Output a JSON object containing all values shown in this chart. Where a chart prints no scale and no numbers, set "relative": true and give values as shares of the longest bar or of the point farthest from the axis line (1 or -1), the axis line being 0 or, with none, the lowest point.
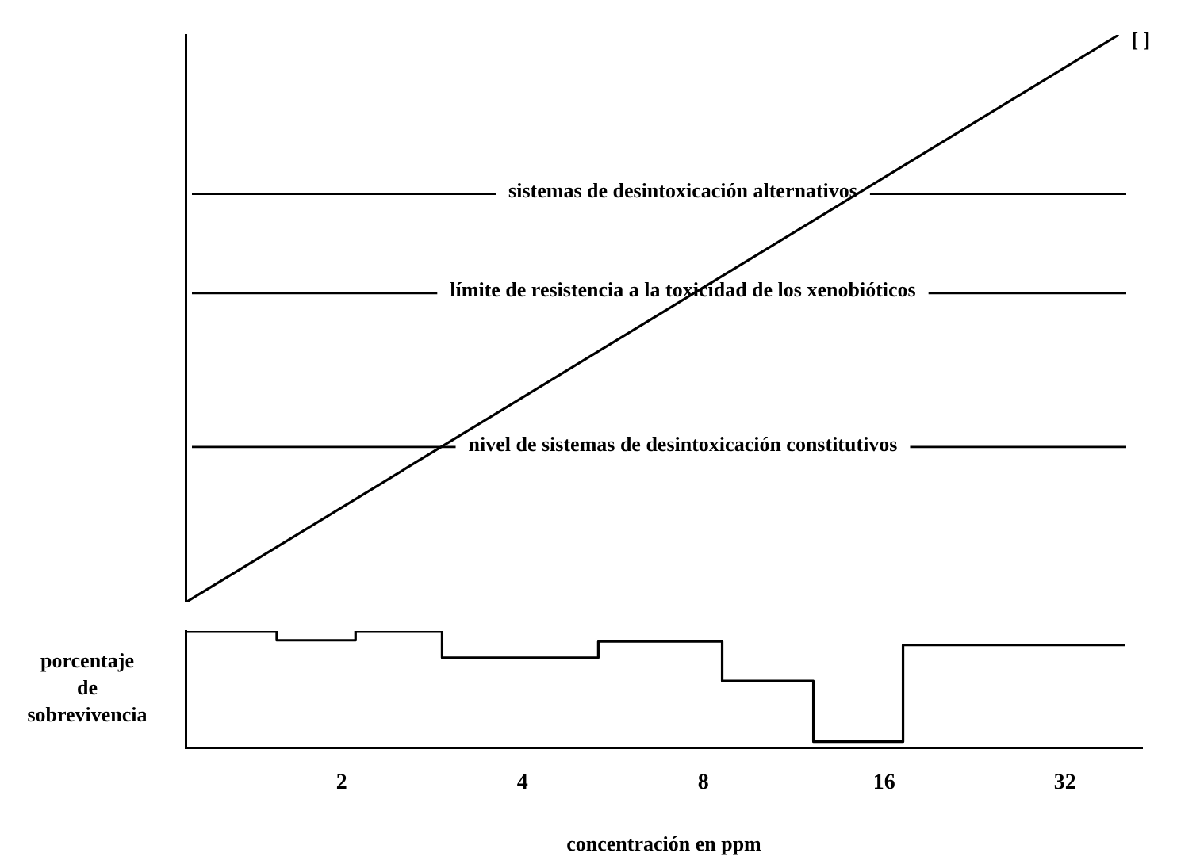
{
  "chart_data": [
    {
      "type": "line",
      "relative": true,
      "x": [
        1.1,
        39.3
      ],
      "series": [
        {
          "color": "#000000",
          "values": [
            0,
            1
          ]
        }
      ],
      "xlim": [
        1.1,
        43
      ],
      "log": "x",
      "tick_labels": false,
      "grid": false,
      "legend": false,
      "ref_lines": [
        {
          "axis": "y",
          "value": 0.72,
          "label": "sistemas de desintoxicación alternativos"
        },
        {
          "axis": "y",
          "value": 0.545,
          "label": "límite de resistencia a la toxicidad de los xenobióticos"
        },
        {
          "axis": "y",
          "value": 0.274,
          "label": "nivel de sistemas de desintoxicación constitutivos"
        }
      ],
      "annotations": [
        {
          "text": "[ ]",
          "x": 39.3,
          "y": 1
        }
      ]
    },
    {
      "type": "step",
      "relative": true,
      "x": [
        1.1,
        1.56,
        2.11,
        2.94,
        5.35,
        8.6,
        12.2,
        17.2,
        40.3
      ],
      "series": [
        {
          "color": "#000000",
          "values": [
            1,
            0.92,
            1,
            0.77,
            0.91,
            0.57,
            0.05,
            0.88,
            0.88
          ]
        }
      ],
      "xlim": [
        1.1,
        43
      ],
      "xticks": [
        2,
        4,
        8,
        16,
        32
      ],
      "log": "x",
      "tick_labels": "x",
      "xlabel": "concentración en ppm",
      "ylabel": "porcentaje de sobrevivencia",
      "grid": false,
      "legend": false
    }
  ]
}
